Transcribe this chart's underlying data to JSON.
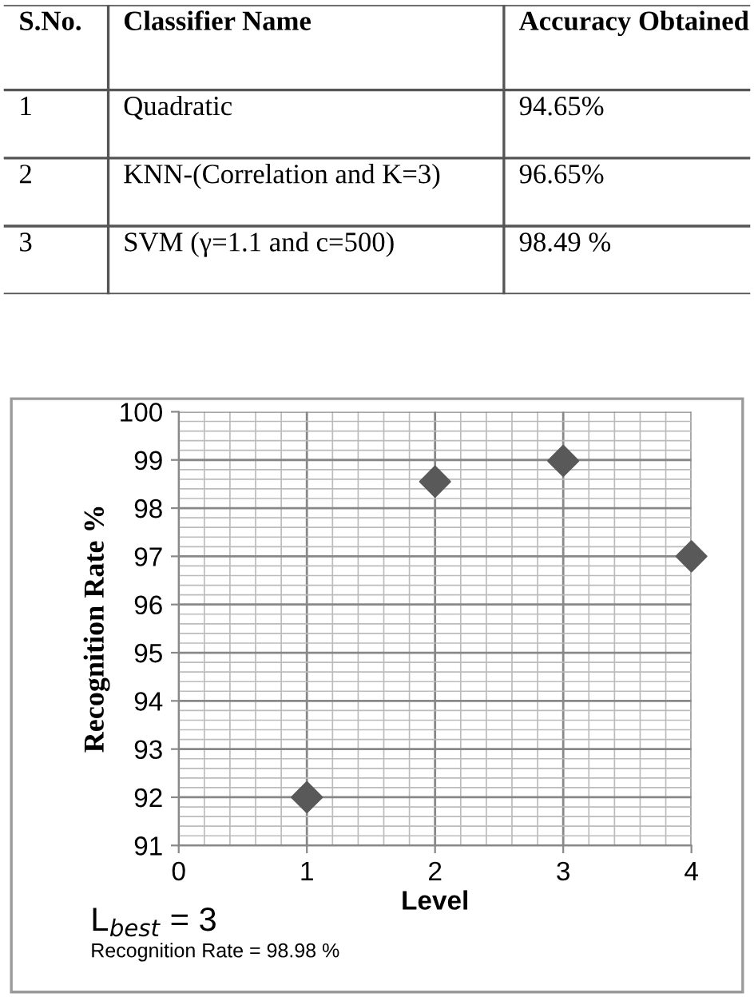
{
  "chart_data": [
    {
      "type": "other",
      "categories": [
        "S.No.",
        "Classifier Name",
        "Accuracy Obtained"
      ],
      "annotations": [
        "1",
        "Quadratic",
        "94.65%",
        "2",
        "KNN-(Correlation and K=3)",
        "96.65%",
        "3",
        "SVM (γ=1.1 and c=500)",
        "98.49 %"
      ]
    },
    {
      "type": "scatter",
      "x": [
        1,
        2,
        3,
        4
      ],
      "values": [
        92,
        98.55,
        98.98,
        97
      ],
      "color": "#595959",
      "marker": "diamond",
      "xlabel": "Level",
      "ylabel": "Recognition Rate %",
      "xlim": [
        0,
        4
      ],
      "xticks": [
        0,
        1,
        2,
        3,
        4
      ],
      "ylim": [
        91,
        100
      ],
      "yticks": [
        91,
        92,
        93,
        94,
        95,
        96,
        97,
        98,
        99,
        100
      ],
      "grid": true,
      "annotations": [
        "L$_{best}$ = 3",
        "Recognition Rate = 98.98 %"
      ]
    }
  ]
}
